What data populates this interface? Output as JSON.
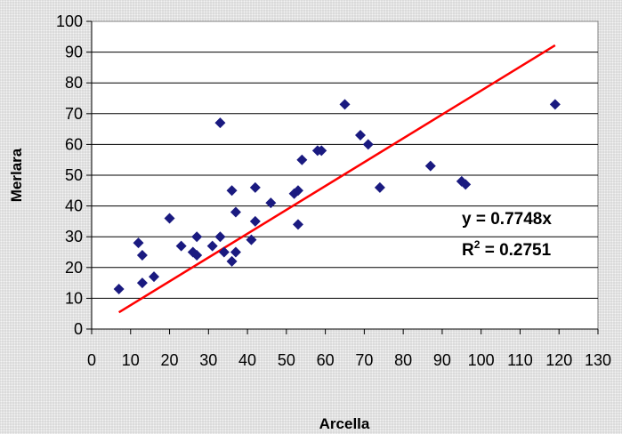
{
  "chart_data": {
    "type": "scatter",
    "xlabel": "Arcella",
    "ylabel": "Merlara",
    "xlim": [
      0,
      130
    ],
    "ylim": [
      0,
      100
    ],
    "x_ticks": [
      0,
      10,
      20,
      30,
      40,
      50,
      60,
      70,
      80,
      90,
      100,
      110,
      120,
      130
    ],
    "y_ticks": [
      0,
      10,
      20,
      30,
      40,
      50,
      60,
      70,
      80,
      90,
      100
    ],
    "grid": "horizontal",
    "marker_color": "#1a1a80",
    "trendline_color": "#ff0000",
    "points": [
      [
        7,
        13
      ],
      [
        12,
        28
      ],
      [
        13,
        24
      ],
      [
        13,
        15
      ],
      [
        16,
        17
      ],
      [
        20,
        36
      ],
      [
        23,
        27
      ],
      [
        26,
        25
      ],
      [
        27,
        30
      ],
      [
        27,
        24
      ],
      [
        31,
        27
      ],
      [
        33,
        30
      ],
      [
        33,
        67
      ],
      [
        34,
        25
      ],
      [
        36,
        45
      ],
      [
        36,
        22
      ],
      [
        37,
        25
      ],
      [
        37,
        38
      ],
      [
        41,
        29
      ],
      [
        42,
        46
      ],
      [
        42,
        35
      ],
      [
        46,
        41
      ],
      [
        52,
        44
      ],
      [
        53,
        45
      ],
      [
        53,
        34
      ],
      [
        54,
        55
      ],
      [
        58,
        58
      ],
      [
        59,
        58
      ],
      [
        65,
        73
      ],
      [
        69,
        63
      ],
      [
        71,
        60
      ],
      [
        74,
        46
      ],
      [
        87,
        53
      ],
      [
        95,
        48
      ],
      [
        96,
        47
      ],
      [
        119,
        73
      ]
    ],
    "trendline": {
      "slope": 0.7748,
      "x_range": [
        7,
        119
      ]
    },
    "equation": "y = 0.7748x",
    "r2_prefix": "R",
    "r2_sup": "2",
    "r2_suffix": " = 0.2751"
  }
}
